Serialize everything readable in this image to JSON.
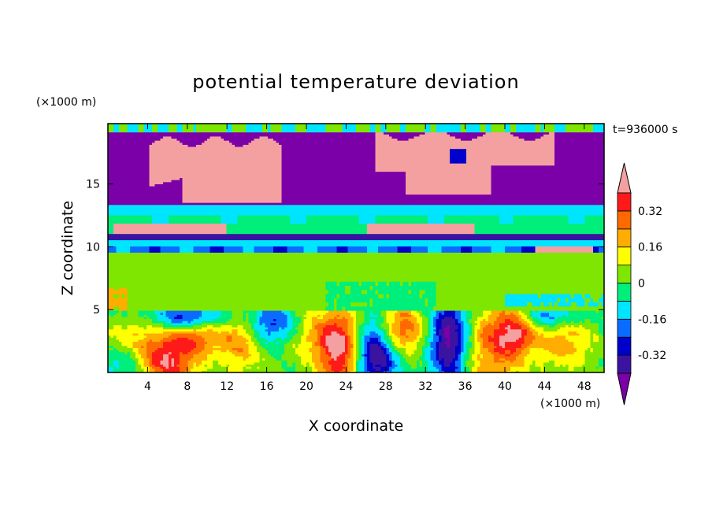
{
  "chart_data": {
    "type": "heatmap",
    "title": "potential temperature deviation",
    "xlabel": "X coordinate",
    "ylabel": "Z coordinate",
    "x_unit": "(×1000 m)",
    "y_unit": "(×1000 m)",
    "time_label": "t=936000 s",
    "xlim": [
      0,
      50
    ],
    "ylim": [
      0,
      19.8
    ],
    "x_ticks": [
      4,
      8,
      12,
      16,
      20,
      24,
      28,
      32,
      36,
      40,
      44,
      48
    ],
    "y_ticks": [
      5,
      10,
      15
    ],
    "grid": false,
    "colorbar": {
      "placement": "right",
      "levels": [
        -0.4,
        -0.32,
        -0.24,
        -0.16,
        -0.08,
        0,
        0.08,
        0.16,
        0.24,
        0.32,
        0.4
      ],
      "tick_labels": [
        "-0.32",
        "-0.16",
        "0",
        "0.16",
        "0.32"
      ],
      "tick_values": [
        -0.32,
        -0.16,
        0,
        0.16,
        0.32
      ],
      "colors": [
        "#7b00a8",
        "#3a14a0",
        "#0000cc",
        "#0a6cff",
        "#00e5ff",
        "#00ee7a",
        "#7ee600",
        "#ffff00",
        "#ffad00",
        "#ff6a00",
        "#ff1a1a",
        "#f5a0a0"
      ],
      "extend": "both"
    },
    "regions": [
      {
        "name": "upper-layer",
        "z_range": [
          13.3,
          19.8
        ],
        "dominant_value": -0.45
      },
      {
        "name": "positive-anomaly-left",
        "x_range": [
          4,
          17.5
        ],
        "z_range": [
          13.4,
          18.5
        ],
        "value": 0.45
      },
      {
        "name": "positive-anomaly-right",
        "x_range": [
          27,
          45
        ],
        "z_range": [
          14,
          19
        ],
        "value": 0.45
      },
      {
        "name": "cyan-band",
        "z_range": [
          11.5,
          13.2
        ],
        "value": -0.12
      },
      {
        "name": "mid-layer",
        "z_range": [
          5,
          10
        ],
        "dominant_value": 0.0
      },
      {
        "name": "lower-layer",
        "z_range": [
          0,
          5
        ],
        "dominant_value": 0.1
      }
    ]
  }
}
